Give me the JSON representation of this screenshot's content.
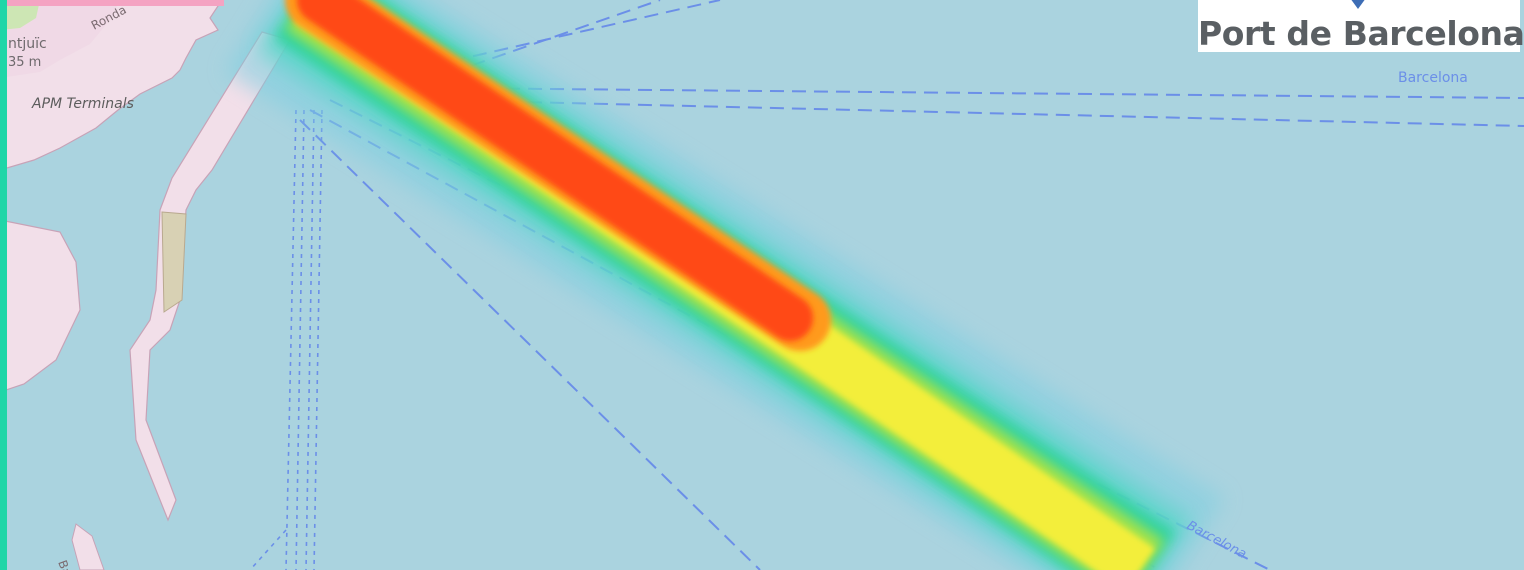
{
  "logo": {
    "text": "Port de Barcelona",
    "mark_color": "#3d6db5"
  },
  "map": {
    "labels": {
      "road": "Ronda",
      "park": "ntjuïc",
      "elevation": "35 m",
      "terminal": "APM Terminals",
      "ferry_route_1": "Barcelona",
      "ferry_route_2": "Barcelona",
      "street_partial": "Bar"
    },
    "colors": {
      "water": "#aad3df",
      "land": "#f2dfe9",
      "park": "#cde6b4",
      "ferry_line": "#6b8fe8",
      "accent": "#1fd6a8",
      "heat_low": "#2fd3a0",
      "heat_mid": "#f3ee3a",
      "heat_high": "#ff4a12"
    }
  },
  "overlay": {
    "type": "heatmap",
    "subject": "vessel traffic density"
  }
}
